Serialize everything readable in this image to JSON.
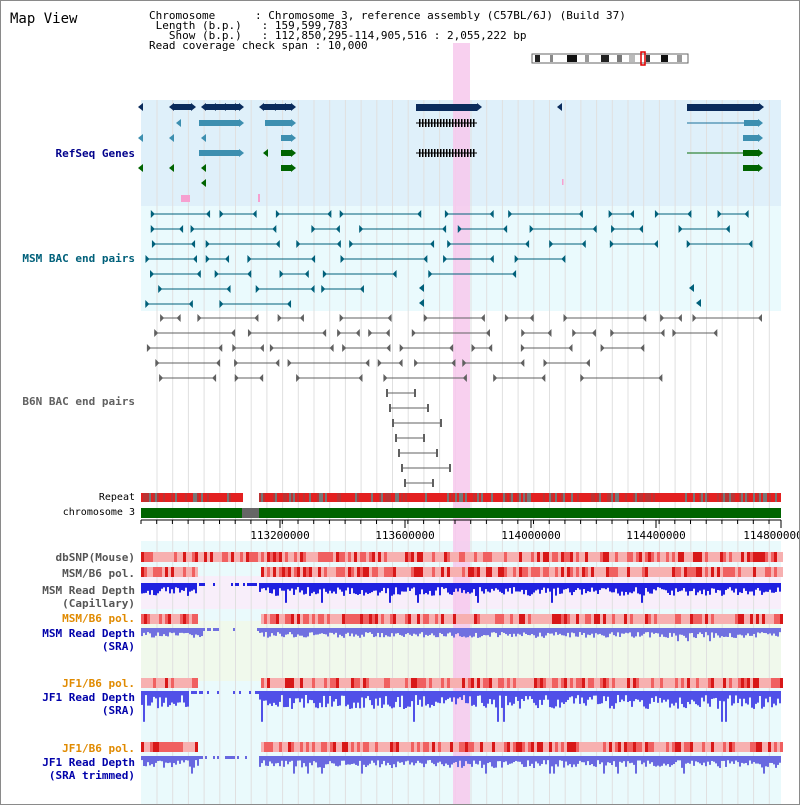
{
  "view_title": "Map View",
  "info": {
    "chromosome_label": "Chromosome",
    "chromosome_value": "Chromosome 3, reference assembly (C57BL/6J) (Build 37)",
    "length_label": "Length (b.p.)",
    "length_value": "159,599,783",
    "show_label": "Show (b.p.)",
    "show_value": "112,850,295-114,905,516 : 2,055,222 bp",
    "read_label": "Read coverage check span",
    "read_value": "10,000"
  },
  "tracks": {
    "refseq": "RefSeq Genes",
    "msm_bac": "MSM BAC end pairs",
    "b6n_bac": "B6N BAC end pairs",
    "repeat": "Repeat",
    "chromosome": "chromosome 3",
    "dbsnp": "dbSNP(Mouse)",
    "msm_b6_pol_1": "MSM/B6 pol.",
    "msm_read_depth_cap_1": "MSM Read Depth",
    "msm_read_depth_cap_2": "(Capillary)",
    "msm_b6_pol_2": "MSM/B6 pol.",
    "msm_read_depth_sra_1": "MSM Read Depth",
    "msm_read_depth_sra_2": "(SRA)",
    "jf1_b6_pol_1": "JF1/B6 pol.",
    "jf1_read_depth_sra_1": "JF1 Read Depth",
    "jf1_read_depth_sra_2": "(SRA)",
    "jf1_b6_pol_2": "JF1/B6 pol.",
    "jf1_read_depth_trim_1": "JF1 Read Depth",
    "jf1_read_depth_trim_2": "(SRA trimmed)"
  },
  "axis": {
    "ticks": [
      "113200000",
      "113600000",
      "114000000",
      "114400000",
      "114800000"
    ]
  },
  "colors": {
    "refseq_label": "#00008b",
    "msm_label": "#00607a",
    "b6n_label": "#606060",
    "pol_label": "#e08a00",
    "depth_label": "#0000aa",
    "highlight": "#f7c8ec",
    "chromosome_bar": "#006400"
  }
}
